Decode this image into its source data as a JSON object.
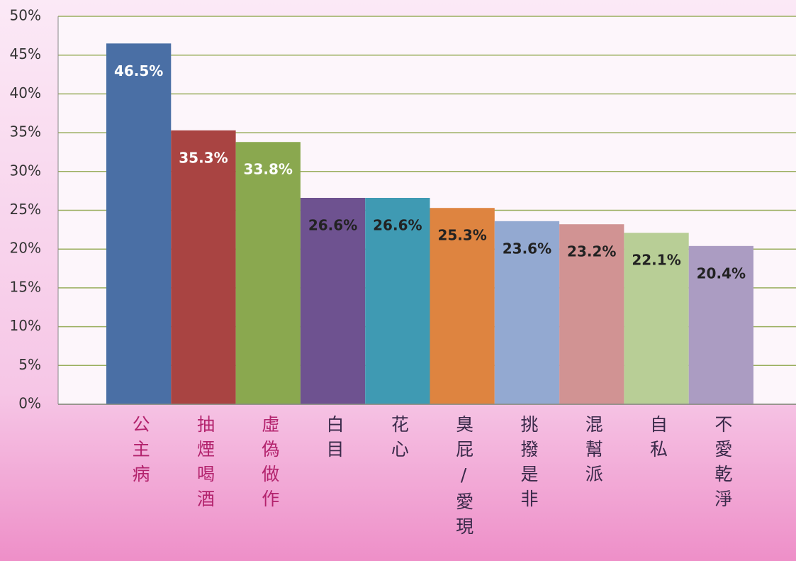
{
  "chart_data": {
    "type": "bar",
    "categories": [
      "公主病",
      "抽煙喝酒",
      "虛偽做作",
      "白目",
      "花心",
      "臭屁/愛現",
      "挑撥是非",
      "混幫派",
      "自私",
      "不愛乾淨"
    ],
    "values": [
      46.5,
      35.3,
      33.8,
      26.6,
      26.6,
      25.3,
      23.6,
      23.2,
      22.1,
      20.4
    ],
    "value_labels": [
      "46.5%",
      "35.3%",
      "33.8%",
      "26.6%",
      "26.6%",
      "25.3%",
      "23.6%",
      "23.2%",
      "22.1%",
      "20.4%"
    ],
    "colors": [
      "#4a6fa5",
      "#a94442",
      "#8aa84f",
      "#6e5290",
      "#3f9ab3",
      "#de8440",
      "#93a9d1",
      "#d19393",
      "#b8ce96",
      "#ab9cc2"
    ],
    "ylim": [
      0,
      50
    ],
    "yticks": [
      {
        "value": 0,
        "label": "0%"
      },
      {
        "value": 5,
        "label": "5%"
      },
      {
        "value": 10,
        "label": "10%"
      },
      {
        "value": 15,
        "label": "15%"
      },
      {
        "value": 20,
        "label": "20%"
      },
      {
        "value": 25,
        "label": "25%"
      },
      {
        "value": 30,
        "label": "30%"
      },
      {
        "value": 35,
        "label": "35%"
      },
      {
        "value": 40,
        "label": "40%"
      },
      {
        "value": 45,
        "label": "45%"
      },
      {
        "value": 50,
        "label": "50%"
      }
    ],
    "grid": true
  }
}
